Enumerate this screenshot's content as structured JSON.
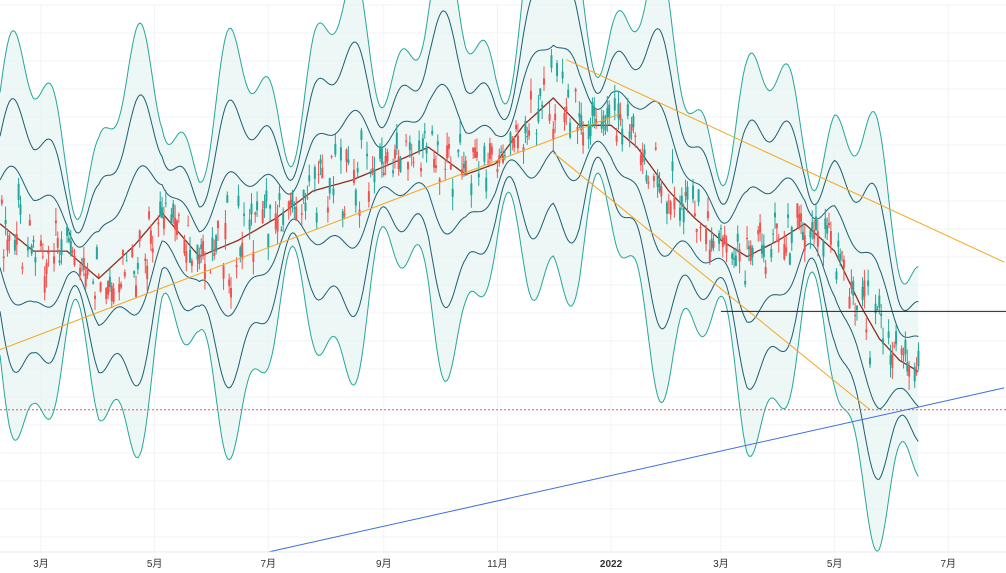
{
  "chart_data": {
    "type": "candlestick",
    "title": "",
    "xlabel": "",
    "ylabel": "",
    "x_tick_labels": [
      "3月",
      "5月",
      "7月",
      "9月",
      "11月",
      "2022",
      "3月",
      "5月",
      "7月"
    ],
    "bold_tick_labels": [
      "2022"
    ],
    "x_tick_months": [
      "2021-03",
      "2021-05",
      "2021-07",
      "2021-09",
      "2021-11",
      "2022-01",
      "2022-03",
      "2022-05",
      "2022-07"
    ],
    "x_range": [
      "2021-02-07",
      "2022-08-01"
    ],
    "y_axis_visible": false,
    "ylim": [
      0,
      100
    ],
    "grid": true,
    "legend": "none",
    "colors": {
      "up_candle": "#26a69a",
      "down_candle": "#ef5350",
      "bands_line": "#26a69a",
      "middle_band": "#8b2d1e",
      "inner_bands": "#1d5f73",
      "band_fill": "#e6f4f2",
      "trendline_orange": "#f5a623",
      "trendline_blue": "#3b6fe0",
      "horizontal_line": "#222222",
      "last_price_line": "#ef5350",
      "grid": "#f0f3f6"
    },
    "middle_band_path": [
      [
        "2021-02-07",
        60
      ],
      [
        "2021-02-25",
        55
      ],
      [
        "2021-03-15",
        55
      ],
      [
        "2021-04-01",
        50
      ],
      [
        "2021-04-20",
        56
      ],
      [
        "2021-05-05",
        62
      ],
      [
        "2021-05-25",
        54
      ],
      [
        "2021-06-15",
        57
      ],
      [
        "2021-07-05",
        61
      ],
      [
        "2021-07-25",
        66
      ],
      [
        "2021-08-15",
        68
      ],
      [
        "2021-09-05",
        71
      ],
      [
        "2021-09-25",
        74
      ],
      [
        "2021-10-15",
        69
      ],
      [
        "2021-10-31",
        71
      ],
      [
        "2021-11-15",
        78
      ],
      [
        "2021-12-01",
        83
      ],
      [
        "2021-12-15",
        78
      ],
      [
        "2022-01-01",
        78
      ],
      [
        "2022-01-15",
        74
      ],
      [
        "2022-02-01",
        66
      ],
      [
        "2022-02-15",
        61
      ],
      [
        "2022-03-01",
        57
      ],
      [
        "2022-03-15",
        54
      ],
      [
        "2022-04-01",
        57
      ],
      [
        "2022-04-15",
        60
      ],
      [
        "2022-05-01",
        55
      ],
      [
        "2022-05-15",
        45
      ],
      [
        "2022-05-25",
        39
      ],
      [
        "2022-06-05",
        35
      ],
      [
        "2022-06-15",
        33
      ]
    ],
    "band_offsets": [
      8,
      16,
      24
    ],
    "annotations": {
      "orange_trendline_1": [
        [
          "2021-02-07",
          37
        ],
        [
          "2022-01-05",
          80
        ]
      ],
      "orange_trendline_2": [
        [
          "2021-12-08",
          90
        ],
        [
          "2022-07-31",
          53
        ]
      ],
      "orange_trendline_3": [
        [
          "2021-12-01",
          73
        ],
        [
          "2022-05-20",
          26
        ]
      ],
      "blue_trendline": [
        [
          "2021-07-01",
          0
        ],
        [
          "2022-07-31",
          30
        ]
      ],
      "horizontal_level": {
        "from": "2022-03-01",
        "value": 44
      },
      "last_price_level": 26
    },
    "candles_note": "approximately 350 daily candles following the middle band with volatility",
    "last_value": 28
  }
}
